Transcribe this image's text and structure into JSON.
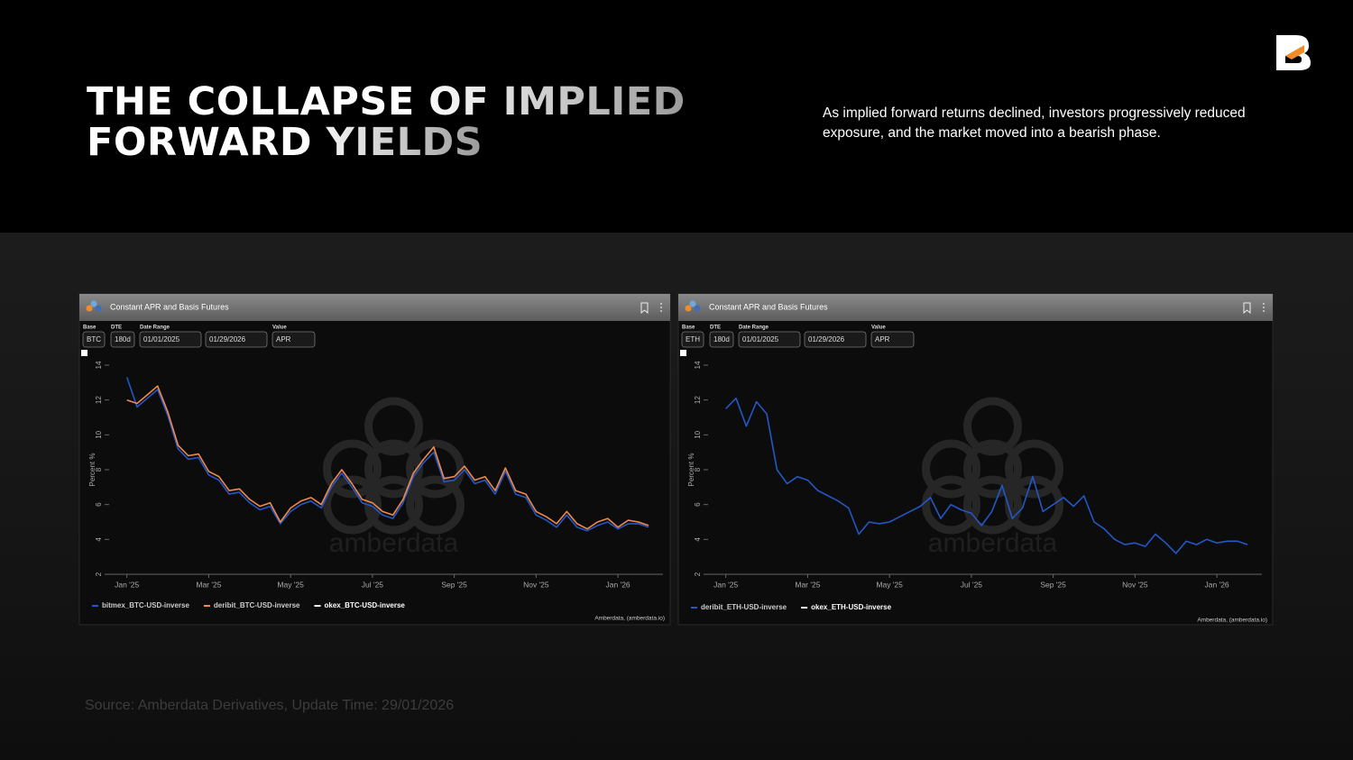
{
  "header": {
    "title_lines": [
      "THE COLLAPSE OF IMPLIED",
      "FORWARD YIELDS"
    ],
    "description": "As implied forward returns declined, investors progressively reduced exposure, and the market moved into a bearish phase."
  },
  "source": "Source: Amberdata Derivatives, Update Time: 29/01/2026",
  "chart_data": [
    {
      "type": "line",
      "title": "Constant APR and Basis Futures",
      "controls": [
        {
          "label": "Base",
          "values": [
            "BTC"
          ]
        },
        {
          "label": "DTE",
          "values": [
            "180d"
          ]
        },
        {
          "label": "Date Range",
          "values": [
            "01/01/2025",
            "01/29/2026"
          ]
        },
        {
          "label": "Value",
          "values": [
            "APR"
          ]
        }
      ],
      "ylabel": "Percent %",
      "grid": false,
      "xlim": [
        -0.5,
        13.1
      ],
      "ylim": [
        2,
        14
      ],
      "xticks": [
        {
          "value": 0,
          "label": "Jan '25"
        },
        {
          "value": 2,
          "label": "Mar '25"
        },
        {
          "value": 4,
          "label": "May '25"
        },
        {
          "value": 6,
          "label": "Jul '25"
        },
        {
          "value": 8,
          "label": "Sep '25"
        },
        {
          "value": 10,
          "label": "Nov '25"
        },
        {
          "value": 12,
          "label": "Jan '26"
        }
      ],
      "yticks": [
        2,
        4,
        6,
        8,
        10,
        12,
        14
      ],
      "x": [
        0,
        0.25,
        0.5,
        0.75,
        1,
        1.25,
        1.5,
        1.75,
        2,
        2.25,
        2.5,
        2.75,
        3,
        3.25,
        3.5,
        3.75,
        4,
        4.25,
        4.5,
        4.75,
        5,
        5.25,
        5.5,
        5.75,
        6,
        6.25,
        6.5,
        6.75,
        7,
        7.25,
        7.5,
        7.75,
        8,
        8.25,
        8.5,
        8.75,
        9,
        9.25,
        9.5,
        9.75,
        10,
        10.25,
        10.5,
        10.75,
        11,
        11.25,
        11.5,
        11.75,
        12,
        12.25,
        12.5,
        12.75
      ],
      "series": [
        {
          "name": "bitmex_BTC-USD-inverse",
          "color": "#2457c5",
          "values": [
            13.3,
            11.6,
            12.1,
            12.6,
            11.1,
            9.2,
            8.6,
            8.7,
            7.7,
            7.4,
            6.6,
            6.7,
            6.1,
            5.7,
            5.9,
            4.9,
            5.6,
            6.0,
            6.2,
            5.8,
            7.0,
            7.8,
            7.0,
            6.1,
            5.9,
            5.4,
            5.2,
            6.1,
            7.6,
            8.4,
            9.0,
            7.3,
            7.4,
            8.0,
            7.2,
            7.4,
            6.6,
            7.9,
            6.6,
            6.4,
            5.4,
            5.1,
            4.7,
            5.4,
            4.7,
            4.5,
            4.8,
            5.0,
            4.6,
            4.9,
            4.9,
            4.7
          ]
        },
        {
          "name": "deribit_BTC-USD-inverse",
          "color": "#f08a4b",
          "values": [
            12.0,
            11.8,
            12.3,
            12.8,
            11.3,
            9.4,
            8.8,
            8.9,
            7.9,
            7.6,
            6.8,
            6.9,
            6.3,
            5.9,
            6.1,
            5.0,
            5.8,
            6.2,
            6.4,
            6.0,
            7.2,
            8.0,
            7.2,
            6.3,
            6.1,
            5.6,
            5.4,
            6.3,
            7.8,
            8.6,
            9.3,
            7.5,
            7.6,
            8.2,
            7.4,
            7.6,
            6.8,
            8.1,
            6.8,
            6.6,
            5.6,
            5.3,
            4.9,
            5.6,
            4.9,
            4.6,
            5.0,
            5.2,
            4.7,
            5.1,
            5.0,
            4.8
          ]
        },
        {
          "name": "okex_BTC-USD-inverse",
          "color": "#ffffff",
          "values": [
            null,
            null,
            null,
            null,
            null,
            null,
            null,
            null,
            null,
            null,
            null,
            null,
            null,
            null,
            null,
            null,
            null,
            null,
            null,
            null,
            null,
            null,
            null,
            null,
            null,
            null,
            null,
            null,
            null,
            null,
            null,
            null,
            null,
            null,
            null,
            null,
            null,
            null,
            null,
            null,
            null,
            null,
            null,
            null,
            null,
            null,
            null,
            null,
            null,
            null,
            null,
            null
          ]
        }
      ],
      "credit": "Amberdata, (amberdata.io)",
      "watermark": "amberdata"
    },
    {
      "type": "line",
      "title": "Constant APR and Basis Futures",
      "controls": [
        {
          "label": "Base",
          "values": [
            "ETH"
          ]
        },
        {
          "label": "DTE",
          "values": [
            "180d"
          ]
        },
        {
          "label": "Date Range",
          "values": [
            "01/01/2025",
            "01/29/2026"
          ]
        },
        {
          "label": "Value",
          "values": [
            "APR"
          ]
        }
      ],
      "ylabel": "Percent %",
      "grid": false,
      "xlim": [
        -0.5,
        13.1
      ],
      "ylim": [
        2,
        14
      ],
      "xticks": [
        {
          "value": 0,
          "label": "Jan '25"
        },
        {
          "value": 2,
          "label": "Mar '25"
        },
        {
          "value": 4,
          "label": "May '25"
        },
        {
          "value": 6,
          "label": "Jul '25"
        },
        {
          "value": 8,
          "label": "Sep '25"
        },
        {
          "value": 10,
          "label": "Nov '25"
        },
        {
          "value": 12,
          "label": "Jan '26"
        }
      ],
      "yticks": [
        2,
        4,
        6,
        8,
        10,
        12,
        14
      ],
      "x": [
        0,
        0.25,
        0.5,
        0.75,
        1,
        1.25,
        1.5,
        1.75,
        2,
        2.25,
        2.5,
        2.75,
        3,
        3.25,
        3.5,
        3.75,
        4,
        4.25,
        4.5,
        4.75,
        5,
        5.25,
        5.5,
        5.75,
        6,
        6.25,
        6.5,
        6.75,
        7,
        7.25,
        7.5,
        7.75,
        8,
        8.25,
        8.5,
        8.75,
        9,
        9.25,
        9.5,
        9.75,
        10,
        10.25,
        10.5,
        10.75,
        11,
        11.25,
        11.5,
        11.75,
        12,
        12.25,
        12.5,
        12.75
      ],
      "series": [
        {
          "name": "deribit_ETH-USD-inverse",
          "color": "#2457c5",
          "values": [
            11.5,
            12.1,
            10.5,
            11.9,
            11.2,
            8.0,
            7.2,
            7.6,
            7.4,
            6.8,
            6.5,
            6.2,
            5.8,
            4.3,
            5.0,
            4.9,
            5.0,
            5.3,
            5.6,
            5.9,
            6.4,
            5.2,
            6.0,
            5.7,
            5.5,
            4.8,
            5.6,
            7.1,
            5.2,
            5.8,
            7.6,
            5.6,
            6.0,
            6.4,
            5.9,
            6.5,
            5.0,
            4.6,
            4.0,
            3.7,
            3.8,
            3.6,
            4.3,
            3.8,
            3.2,
            3.9,
            3.7,
            4.0,
            3.8,
            3.9,
            3.9,
            3.7
          ]
        },
        {
          "name": "okex_ETH-USD-inverse",
          "color": "#ffffff",
          "values": [
            null,
            null,
            null,
            null,
            null,
            null,
            null,
            null,
            null,
            null,
            null,
            null,
            null,
            null,
            null,
            null,
            null,
            null,
            null,
            null,
            null,
            null,
            null,
            null,
            null,
            null,
            null,
            null,
            null,
            null,
            null,
            null,
            null,
            null,
            null,
            null,
            null,
            null,
            null,
            null,
            null,
            null,
            null,
            null,
            null,
            null,
            null,
            null,
            null,
            null,
            null,
            null
          ]
        }
      ],
      "credit": "Amberdata, (amberdata.io)",
      "watermark": "amberdata"
    }
  ]
}
